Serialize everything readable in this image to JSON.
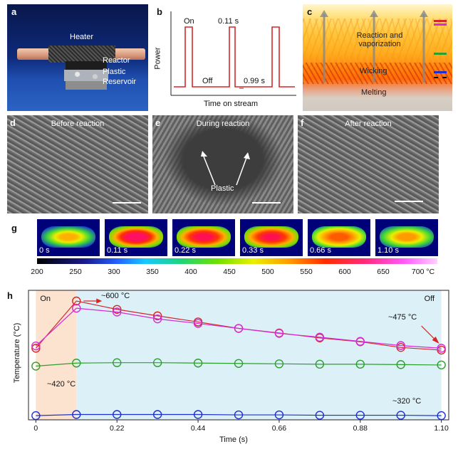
{
  "panel_labels": {
    "a": "a",
    "b": "b",
    "c": "c",
    "d": "d",
    "e": "e",
    "f": "f",
    "g": "g",
    "h": "h"
  },
  "panel_a": {
    "heater": "Heater",
    "reactor": "Reactor",
    "plastic": "Plastic",
    "reservoir": "Reservoir"
  },
  "panel_b": {
    "on": "On",
    "off": "Off",
    "t_on": "0.11 s",
    "t_off": "0.99 s",
    "ylabel": "Power",
    "xlabel": "Time on stream"
  },
  "panel_c": {
    "reaction": "Reaction and vaporization",
    "wicking": "Wicking",
    "melting": "Melting",
    "marker_colors": [
      "#d62728",
      "#d62bd6",
      "#2ca02c",
      "#1f2fcf",
      "#111111"
    ]
  },
  "panel_d": {
    "title": "Before reaction"
  },
  "panel_e": {
    "title": "During reaction",
    "plastic": "Plastic"
  },
  "panel_f": {
    "title": "After reaction"
  },
  "panel_g": {
    "times": [
      "0 s",
      "0.11 s",
      "0.22 s",
      "0.33 s",
      "0.66 s",
      "1.10 s"
    ],
    "colorbar_ticks": [
      "200",
      "250",
      "300",
      "350",
      "400",
      "450",
      "500",
      "550",
      "600",
      "650",
      "700 °C"
    ]
  },
  "chart_data": {
    "type": "line",
    "x": [
      0,
      0.11,
      0.22,
      0.33,
      0.44,
      0.55,
      0.66,
      0.77,
      0.88,
      0.99,
      1.1
    ],
    "xticks": [
      "0",
      "0.22",
      "0.44",
      "0.66",
      "0.88",
      "1.10"
    ],
    "xlabel": "Time (s)",
    "ylabel": "Temperature (°C)",
    "ylim": [
      300,
      640
    ],
    "xlim": [
      -0.02,
      1.12
    ],
    "on_region": [
      0,
      0.11
    ],
    "off_region": [
      0.11,
      1.1
    ],
    "on_label": "On",
    "off_label": "Off",
    "series": [
      {
        "name": "red",
        "color": "#d62728",
        "values": [
          488,
          612,
          590,
          573,
          557,
          540,
          528,
          515,
          505,
          490,
          483
        ]
      },
      {
        "name": "magenta",
        "color": "#d62bd6",
        "values": [
          494,
          593,
          583,
          565,
          553,
          540,
          527,
          517,
          506,
          495,
          488
        ]
      },
      {
        "name": "green",
        "color": "#2ca02c",
        "values": [
          441,
          449,
          450,
          450,
          449,
          448,
          447,
          446,
          446,
          445,
          444
        ]
      },
      {
        "name": "blue",
        "color": "#1f2fcf",
        "values": [
          311,
          314,
          314,
          314,
          314,
          313,
          313,
          312,
          312,
          312,
          311
        ]
      }
    ],
    "annotations": [
      {
        "text": "~600 °C"
      },
      {
        "text": "~475 °C"
      },
      {
        "text": "~420 °C"
      },
      {
        "text": "~320 °C"
      }
    ]
  }
}
